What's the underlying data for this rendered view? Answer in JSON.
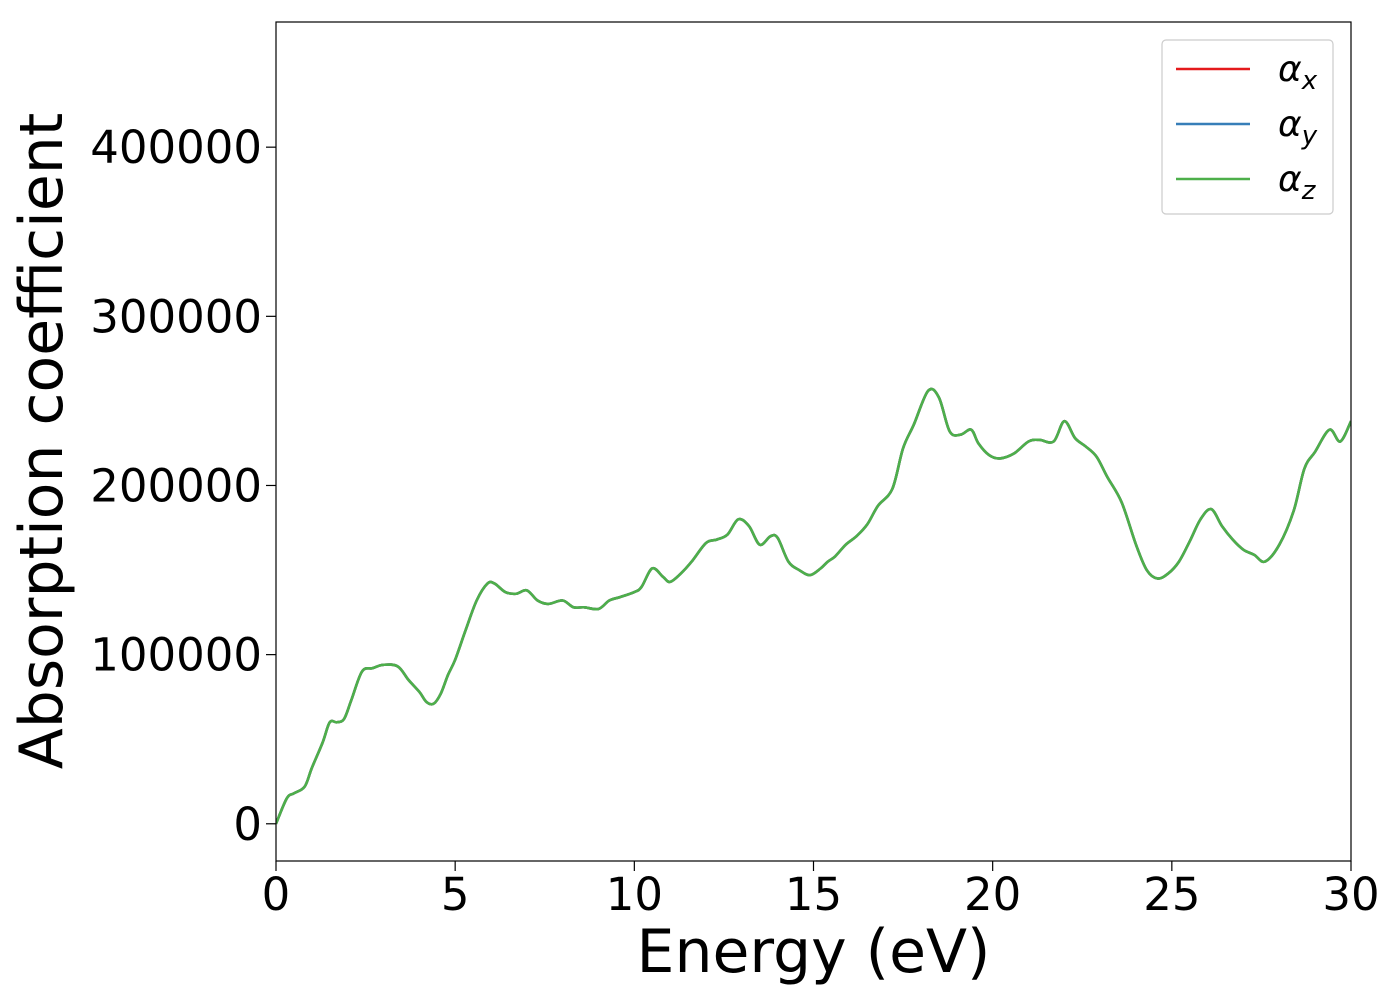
{
  "chart_data": {
    "type": "line",
    "title": "",
    "xlabel": "Energy (eV)",
    "ylabel": "Absorption coefficient",
    "xlim": [
      0,
      30
    ],
    "ylim": [
      -22000,
      474000
    ],
    "x_ticks": [
      0,
      5,
      10,
      15,
      20,
      25,
      30
    ],
    "y_ticks": [
      0,
      100000,
      200000,
      300000,
      400000
    ],
    "grid": false,
    "legend": {
      "placement": "top-right"
    },
    "series": [
      {
        "name": "αx",
        "base": "α",
        "sub": "x",
        "color": "#e41a1c",
        "x": [
          0,
          0.3,
          0.5,
          0.8,
          1.0,
          1.3,
          1.5,
          1.7,
          1.9,
          2.1,
          2.4,
          2.7,
          3.0,
          3.4,
          3.7,
          4.0,
          4.2,
          4.4,
          4.6,
          4.8,
          5.0,
          5.3,
          5.6,
          5.9,
          6.1,
          6.4,
          6.7,
          7.0,
          7.3,
          7.6,
          8.0,
          8.3,
          8.6,
          9.0,
          9.3,
          9.6,
          10.0,
          10.2,
          10.5,
          10.8,
          11.0,
          11.3,
          11.6,
          12.0,
          12.3,
          12.6,
          12.9,
          13.2,
          13.5,
          13.8,
          14.0,
          14.3,
          14.6,
          14.9,
          15.2,
          15.4,
          15.6,
          15.9,
          16.2,
          16.5,
          16.8,
          17.2,
          17.5,
          17.8,
          18.2,
          18.5,
          18.8,
          19.1,
          19.4,
          19.6,
          19.9,
          20.2,
          20.6,
          21.0,
          21.3,
          21.7,
          22.0,
          22.3,
          22.6,
          22.9,
          23.2,
          23.6,
          24.0,
          24.3,
          24.6,
          24.9,
          25.2,
          25.5,
          25.8,
          26.1,
          26.4,
          26.7,
          27.0,
          27.3,
          27.6,
          28.0,
          28.4,
          28.7,
          29.0,
          29.4,
          29.7,
          30.0
        ],
        "y": [
          0,
          15000,
          18000,
          22000,
          33000,
          48000,
          60000,
          60000,
          62000,
          73000,
          90000,
          92000,
          94000,
          93000,
          85000,
          78000,
          72000,
          71000,
          77000,
          88000,
          97000,
          115000,
          132000,
          142000,
          142000,
          137000,
          136000,
          138000,
          132000,
          130000,
          132000,
          128000,
          128000,
          127000,
          132000,
          134000,
          137000,
          140000,
          151000,
          146000,
          143000,
          148000,
          155000,
          166000,
          168000,
          171000,
          180000,
          176000,
          165000,
          170000,
          169000,
          155000,
          150000,
          147000,
          151000,
          155000,
          158000,
          165000,
          170000,
          177000,
          188000,
          198000,
          222000,
          236000,
          256000,
          252000,
          232000,
          230000,
          233000,
          225000,
          218000,
          216000,
          219000,
          226000,
          227000,
          226000,
          238000,
          228000,
          223000,
          217000,
          205000,
          190000,
          165000,
          150000,
          145000,
          148000,
          155000,
          167000,
          180000,
          186000,
          176000,
          168000,
          162000,
          159000,
          155000,
          165000,
          185000,
          210000,
          220000,
          233000,
          226000,
          238000
        ]
      },
      {
        "name": "αy",
        "base": "α",
        "sub": "y",
        "color": "#377eb8",
        "x": [
          0,
          0.3,
          0.5,
          0.8,
          1.0,
          1.3,
          1.5,
          1.7,
          1.9,
          2.1,
          2.4,
          2.7,
          3.0,
          3.4,
          3.7,
          4.0,
          4.2,
          4.4,
          4.6,
          4.8,
          5.0,
          5.3,
          5.6,
          5.9,
          6.1,
          6.4,
          6.7,
          7.0,
          7.3,
          7.6,
          8.0,
          8.3,
          8.6,
          9.0,
          9.3,
          9.6,
          10.0,
          10.2,
          10.5,
          10.8,
          11.0,
          11.3,
          11.6,
          12.0,
          12.3,
          12.6,
          12.9,
          13.2,
          13.5,
          13.8,
          14.0,
          14.3,
          14.6,
          14.9,
          15.2,
          15.4,
          15.6,
          15.9,
          16.2,
          16.5,
          16.8,
          17.2,
          17.5,
          17.8,
          18.2,
          18.5,
          18.8,
          19.1,
          19.4,
          19.6,
          19.9,
          20.2,
          20.6,
          21.0,
          21.3,
          21.7,
          22.0,
          22.3,
          22.6,
          22.9,
          23.2,
          23.6,
          24.0,
          24.3,
          24.6,
          24.9,
          25.2,
          25.5,
          25.8,
          26.1,
          26.4,
          26.7,
          27.0,
          27.3,
          27.6,
          28.0,
          28.4,
          28.7,
          29.0,
          29.4,
          29.7,
          30.0
        ],
        "y": [
          0,
          15000,
          18000,
          22000,
          33000,
          48000,
          60000,
          60000,
          62000,
          73000,
          90000,
          92000,
          94000,
          93000,
          85000,
          78000,
          72000,
          71000,
          77000,
          88000,
          97000,
          115000,
          132000,
          142000,
          142000,
          137000,
          136000,
          138000,
          132000,
          130000,
          132000,
          128000,
          128000,
          127000,
          132000,
          134000,
          137000,
          140000,
          151000,
          146000,
          143000,
          148000,
          155000,
          166000,
          168000,
          171000,
          180000,
          176000,
          165000,
          170000,
          169000,
          155000,
          150000,
          147000,
          151000,
          155000,
          158000,
          165000,
          170000,
          177000,
          188000,
          198000,
          222000,
          236000,
          256000,
          252000,
          232000,
          230000,
          233000,
          225000,
          218000,
          216000,
          219000,
          226000,
          227000,
          226000,
          238000,
          228000,
          223000,
          217000,
          205000,
          190000,
          165000,
          150000,
          145000,
          148000,
          155000,
          167000,
          180000,
          186000,
          176000,
          168000,
          162000,
          159000,
          155000,
          165000,
          185000,
          210000,
          220000,
          233000,
          226000,
          238000
        ]
      },
      {
        "name": "αz",
        "base": "α",
        "sub": "z",
        "color": "#4daf4a",
        "x": [
          0,
          0.3,
          0.5,
          0.8,
          1.0,
          1.3,
          1.5,
          1.7,
          1.9,
          2.1,
          2.4,
          2.7,
          3.0,
          3.4,
          3.7,
          4.0,
          4.2,
          4.4,
          4.6,
          4.8,
          5.0,
          5.3,
          5.6,
          5.9,
          6.1,
          6.4,
          6.7,
          7.0,
          7.3,
          7.6,
          8.0,
          8.3,
          8.6,
          9.0,
          9.3,
          9.6,
          10.0,
          10.2,
          10.5,
          10.8,
          11.0,
          11.3,
          11.6,
          12.0,
          12.3,
          12.6,
          12.9,
          13.2,
          13.5,
          13.8,
          14.0,
          14.3,
          14.6,
          14.9,
          15.2,
          15.4,
          15.6,
          15.9,
          16.2,
          16.5,
          16.8,
          17.2,
          17.5,
          17.8,
          18.2,
          18.5,
          18.8,
          19.1,
          19.4,
          19.6,
          19.9,
          20.2,
          20.6,
          21.0,
          21.3,
          21.7,
          22.0,
          22.3,
          22.6,
          22.9,
          23.2,
          23.6,
          24.0,
          24.3,
          24.6,
          24.9,
          25.2,
          25.5,
          25.8,
          26.1,
          26.4,
          26.7,
          27.0,
          27.3,
          27.6,
          28.0,
          28.4,
          28.7,
          29.0,
          29.4,
          29.7,
          30.0
        ],
        "y": [
          0,
          15000,
          18000,
          22000,
          33000,
          48000,
          60000,
          60000,
          62000,
          73000,
          90000,
          92000,
          94000,
          93000,
          85000,
          78000,
          72000,
          71000,
          77000,
          88000,
          97000,
          115000,
          132000,
          142000,
          142000,
          137000,
          136000,
          138000,
          132000,
          130000,
          132000,
          128000,
          128000,
          127000,
          132000,
          134000,
          137000,
          140000,
          151000,
          146000,
          143000,
          148000,
          155000,
          166000,
          168000,
          171000,
          180000,
          176000,
          165000,
          170000,
          169000,
          155000,
          150000,
          147000,
          151000,
          155000,
          158000,
          165000,
          170000,
          177000,
          188000,
          198000,
          222000,
          236000,
          256000,
          252000,
          232000,
          230000,
          233000,
          225000,
          218000,
          216000,
          219000,
          226000,
          227000,
          226000,
          238000,
          228000,
          223000,
          217000,
          205000,
          190000,
          165000,
          150000,
          145000,
          148000,
          155000,
          167000,
          180000,
          186000,
          176000,
          168000,
          162000,
          159000,
          155000,
          165000,
          185000,
          210000,
          220000,
          233000,
          226000,
          238000
        ]
      }
    ]
  }
}
